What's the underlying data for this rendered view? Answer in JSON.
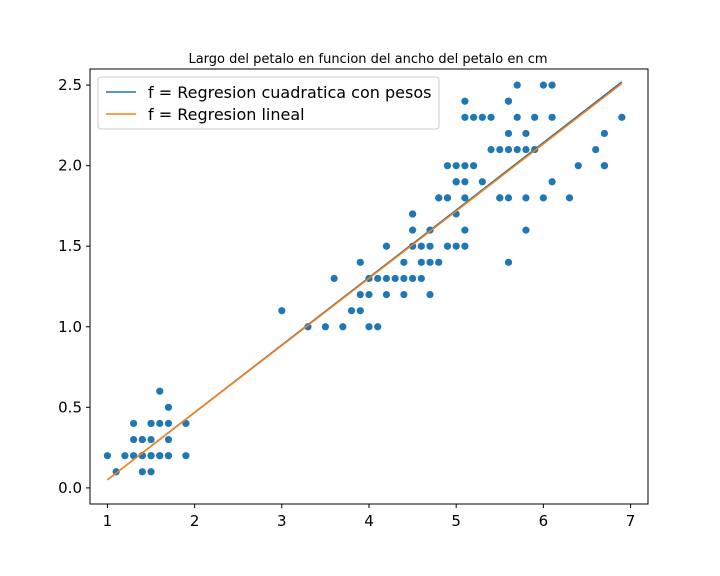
{
  "chart_data": {
    "type": "scatter",
    "title": "Largo del petalo en funcion del ancho del petalo en cm",
    "xlabel": "",
    "ylabel": "",
    "xlim": [
      0.8,
      7.2
    ],
    "ylim": [
      -0.1,
      2.6
    ],
    "xticks": [
      1,
      2,
      3,
      4,
      5,
      6,
      7
    ],
    "yticks": [
      0.0,
      0.5,
      1.0,
      1.5,
      2.0,
      2.5
    ],
    "xtick_labels": [
      "1",
      "2",
      "3",
      "4",
      "5",
      "6",
      "7"
    ],
    "ytick_labels": [
      "0.0",
      "0.5",
      "1.0",
      "1.5",
      "2.0",
      "2.5"
    ],
    "grid": false,
    "legend_position": "top-left",
    "points": {
      "color": "#1f77b4",
      "x": [
        1.0,
        1.1,
        1.2,
        1.3,
        1.3,
        1.3,
        1.4,
        1.4,
        1.4,
        1.4,
        1.5,
        1.5,
        1.5,
        1.5,
        1.5,
        1.6,
        1.6,
        1.6,
        1.6,
        1.7,
        1.7,
        1.7,
        1.7,
        1.7,
        1.9,
        1.9,
        1.4,
        1.5,
        3.0,
        3.3,
        3.5,
        3.6,
        3.7,
        3.8,
        3.9,
        3.9,
        3.9,
        4.0,
        4.0,
        4.0,
        4.1,
        4.1,
        4.2,
        4.2,
        4.2,
        4.3,
        4.4,
        4.4,
        4.4,
        4.5,
        4.5,
        4.5,
        4.5,
        4.6,
        4.6,
        4.6,
        4.7,
        4.7,
        4.7,
        4.7,
        4.8,
        4.8,
        4.9,
        4.9,
        4.9,
        5.0,
        5.0,
        5.0,
        5.1,
        5.1,
        5.1,
        4.5,
        4.8,
        4.9,
        5.0,
        5.0,
        5.1,
        5.1,
        5.1,
        5.1,
        5.2,
        5.2,
        5.3,
        5.3,
        5.4,
        5.4,
        5.5,
        5.5,
        5.5,
        5.6,
        5.6,
        5.6,
        5.6,
        5.6,
        5.7,
        5.7,
        5.7,
        5.8,
        5.8,
        5.8,
        5.9,
        5.9,
        6.0,
        6.0,
        6.1,
        6.1,
        6.1,
        6.3,
        6.4,
        6.6,
        6.7,
        6.7,
        6.7,
        6.9,
        5.6,
        5.8
      ],
      "y": [
        0.2,
        0.1,
        0.2,
        0.2,
        0.3,
        0.4,
        0.1,
        0.2,
        0.3,
        0.2,
        0.1,
        0.2,
        0.3,
        0.4,
        0.2,
        0.2,
        0.4,
        0.6,
        0.2,
        0.2,
        0.3,
        0.4,
        0.5,
        0.2,
        0.2,
        0.4,
        0.3,
        0.4,
        1.1,
        1.0,
        1.0,
        1.3,
        1.0,
        1.1,
        1.1,
        1.2,
        1.4,
        1.0,
        1.2,
        1.3,
        1.0,
        1.3,
        1.2,
        1.3,
        1.5,
        1.3,
        1.2,
        1.3,
        1.4,
        1.3,
        1.5,
        1.6,
        1.7,
        1.3,
        1.4,
        1.5,
        1.2,
        1.4,
        1.5,
        1.6,
        1.4,
        1.8,
        1.5,
        1.8,
        2.0,
        1.5,
        1.7,
        1.9,
        1.5,
        1.6,
        1.8,
        1.7,
        1.8,
        1.8,
        1.9,
        2.0,
        1.9,
        2.0,
        2.3,
        2.4,
        2.0,
        2.3,
        1.9,
        2.3,
        2.1,
        2.3,
        1.8,
        2.1,
        1.8,
        1.4,
        1.8,
        2.1,
        2.2,
        2.4,
        2.1,
        2.3,
        2.5,
        1.6,
        1.8,
        2.2,
        2.1,
        2.3,
        1.8,
        2.5,
        1.9,
        2.3,
        2.5,
        1.8,
        2.0,
        2.1,
        2.0,
        2.2,
        2.0,
        2.3,
        2.4,
        2.1
      ]
    },
    "series": [
      {
        "name": "f = Regresion cuadratica con pesos",
        "color": "#1f77b4",
        "x": [
          1.0,
          6.9
        ],
        "y": [
          0.05,
          2.52
        ]
      },
      {
        "name": "f = Regresion lineal",
        "color": "#ff7f0e",
        "x": [
          1.0,
          6.9
        ],
        "y": [
          0.05,
          2.51
        ]
      }
    ]
  }
}
